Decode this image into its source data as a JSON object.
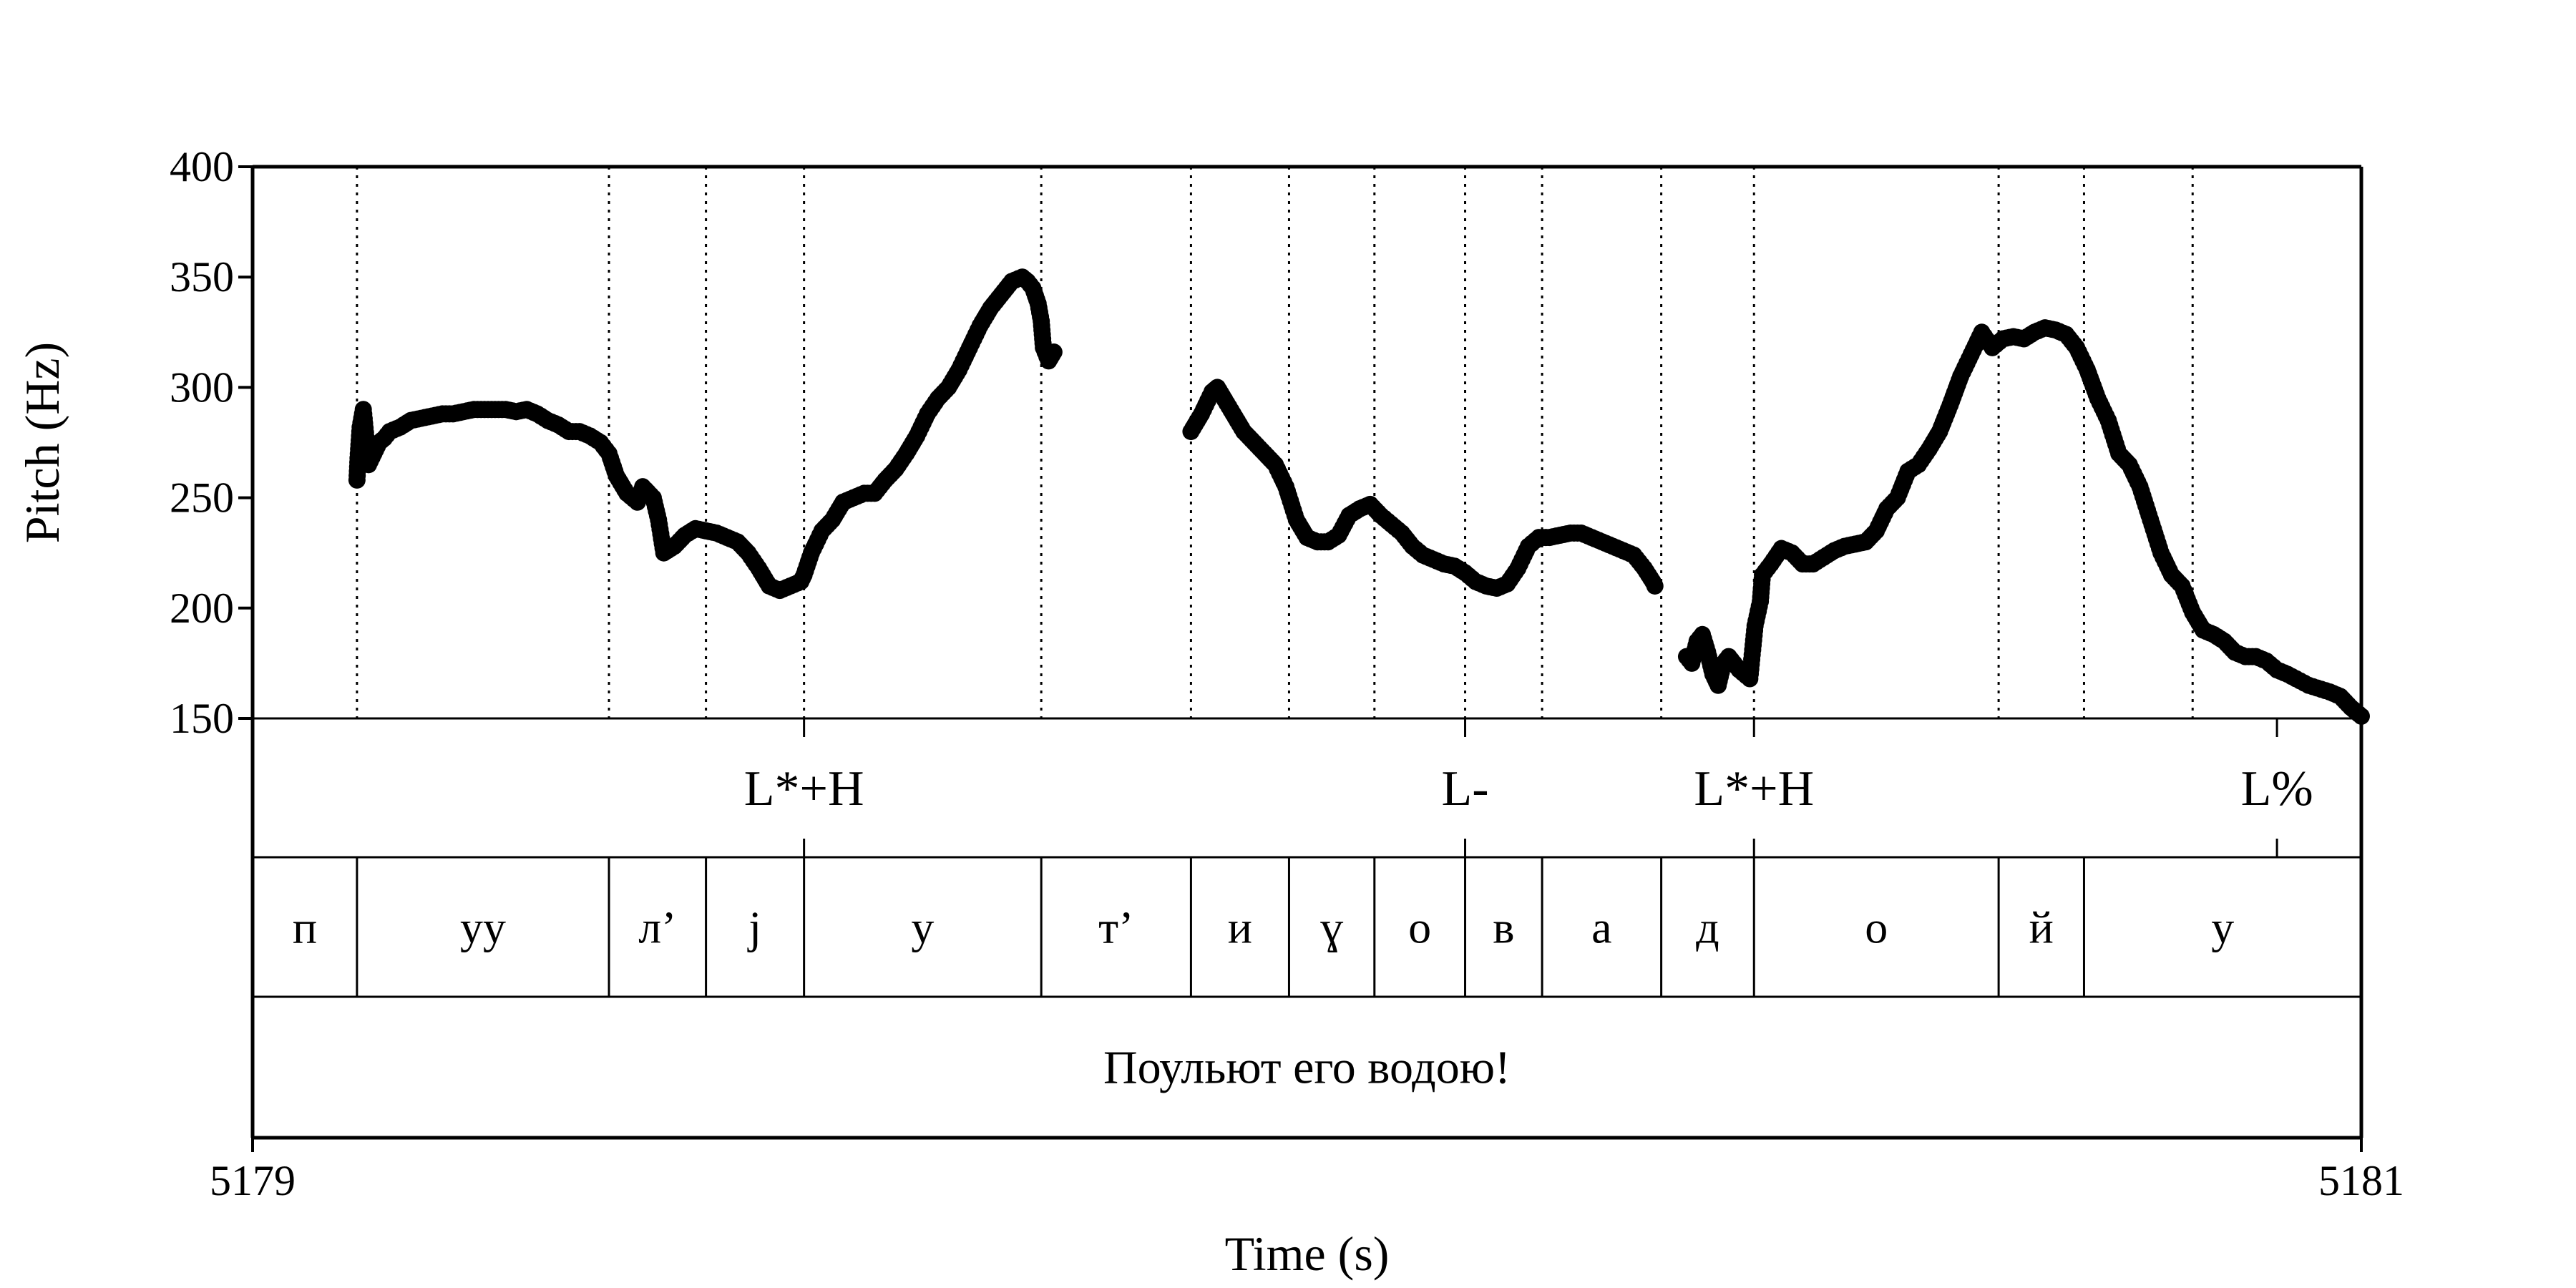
{
  "chart_data": {
    "type": "scatter",
    "xlabel": "Time (s)",
    "ylabel": "Pitch (Hz)",
    "xlim": [
      5179,
      5181
    ],
    "ylim": [
      150,
      400
    ],
    "xticks": [
      "5179",
      "5181"
    ],
    "yticks": [
      "150",
      "200",
      "250",
      "300",
      "350",
      "400"
    ],
    "boundaries": [
      5179.099,
      5179.338,
      5179.43,
      5179.523,
      5179.748,
      5179.89,
      5179.983,
      5180.064,
      5180.15,
      5180.223,
      5180.336,
      5180.424,
      5180.656,
      5180.737,
      5180.84,
      5181.0
    ],
    "tones": [
      {
        "label": "L*+H",
        "t": 5179.523
      },
      {
        "label": "L-",
        "t": 5180.15
      },
      {
        "label": "L*+H",
        "t": 5180.424
      },
      {
        "label": "L%",
        "t": 5180.92
      }
    ],
    "segments": [
      {
        "label": "п",
        "start": 5179.0,
        "end": 5179.099
      },
      {
        "label": "уу",
        "start": 5179.099,
        "end": 5179.338
      },
      {
        "label": "л’",
        "start": 5179.338,
        "end": 5179.43
      },
      {
        "label": "j",
        "start": 5179.43,
        "end": 5179.523
      },
      {
        "label": "у",
        "start": 5179.523,
        "end": 5179.748
      },
      {
        "label": "т’",
        "start": 5179.748,
        "end": 5179.89
      },
      {
        "label": "и",
        "start": 5179.89,
        "end": 5179.983
      },
      {
        "label": "ɣ",
        "start": 5179.983,
        "end": 5180.064
      },
      {
        "label": "о",
        "start": 5180.064,
        "end": 5180.15
      },
      {
        "label": "в",
        "start": 5180.15,
        "end": 5180.223
      },
      {
        "label": "а",
        "start": 5180.223,
        "end": 5180.336
      },
      {
        "label": "д",
        "start": 5180.336,
        "end": 5180.424
      },
      {
        "label": "о",
        "start": 5180.424,
        "end": 5180.656
      },
      {
        "label": "й",
        "start": 5180.656,
        "end": 5180.737
      },
      {
        "label": "у",
        "start": 5180.737,
        "end": 5181.0
      }
    ],
    "utterance": "Поульют его водою!",
    "pitch_segments": [
      [
        [
          5179.099,
          258
        ],
        [
          5179.1,
          268
        ],
        [
          5179.102,
          282
        ],
        [
          5179.105,
          290
        ],
        [
          5179.11,
          265
        ],
        [
          5179.115,
          270
        ],
        [
          5179.12,
          275
        ],
        [
          5179.125,
          277
        ],
        [
          5179.13,
          280
        ],
        [
          5179.14,
          282
        ],
        [
          5179.15,
          285
        ],
        [
          5179.16,
          286
        ],
        [
          5179.17,
          287
        ],
        [
          5179.18,
          288
        ],
        [
          5179.19,
          288
        ],
        [
          5179.2,
          289
        ],
        [
          5179.21,
          290
        ],
        [
          5179.22,
          290
        ],
        [
          5179.23,
          290
        ],
        [
          5179.24,
          290
        ],
        [
          5179.25,
          289
        ],
        [
          5179.26,
          290
        ],
        [
          5179.27,
          288
        ],
        [
          5179.28,
          285
        ],
        [
          5179.29,
          283
        ],
        [
          5179.3,
          280
        ],
        [
          5179.31,
          280
        ],
        [
          5179.32,
          278
        ],
        [
          5179.33,
          275
        ],
        [
          5179.338,
          270
        ],
        [
          5179.345,
          260
        ],
        [
          5179.355,
          252
        ],
        [
          5179.365,
          248
        ],
        [
          5179.37,
          255
        ],
        [
          5179.38,
          250
        ],
        [
          5179.385,
          240
        ],
        [
          5179.39,
          225
        ],
        [
          5179.4,
          228
        ],
        [
          5179.41,
          233
        ],
        [
          5179.42,
          236
        ],
        [
          5179.43,
          235
        ],
        [
          5179.44,
          234
        ],
        [
          5179.45,
          232
        ],
        [
          5179.46,
          230
        ],
        [
          5179.47,
          225
        ],
        [
          5179.48,
          218
        ],
        [
          5179.49,
          210
        ],
        [
          5179.5,
          208
        ],
        [
          5179.51,
          210
        ],
        [
          5179.52,
          212
        ],
        [
          5179.523,
          215
        ],
        [
          5179.53,
          225
        ],
        [
          5179.54,
          235
        ],
        [
          5179.55,
          240
        ],
        [
          5179.56,
          248
        ],
        [
          5179.57,
          250
        ],
        [
          5179.58,
          252
        ],
        [
          5179.59,
          252
        ],
        [
          5179.6,
          258
        ],
        [
          5179.61,
          263
        ],
        [
          5179.62,
          270
        ],
        [
          5179.63,
          278
        ],
        [
          5179.64,
          288
        ],
        [
          5179.65,
          295
        ],
        [
          5179.66,
          300
        ],
        [
          5179.67,
          308
        ],
        [
          5179.68,
          318
        ],
        [
          5179.69,
          328
        ],
        [
          5179.7,
          336
        ],
        [
          5179.71,
          342
        ],
        [
          5179.72,
          348
        ],
        [
          5179.73,
          350
        ],
        [
          5179.735,
          348
        ],
        [
          5179.74,
          345
        ],
        [
          5179.745,
          338
        ],
        [
          5179.748,
          330
        ],
        [
          5179.75,
          318
        ],
        [
          5179.755,
          312
        ],
        [
          5179.76,
          316
        ]
      ],
      [
        [
          5179.89,
          280
        ],
        [
          5179.9,
          288
        ],
        [
          5179.91,
          298
        ],
        [
          5179.915,
          300
        ],
        [
          5179.92,
          296
        ],
        [
          5179.93,
          288
        ],
        [
          5179.94,
          280
        ],
        [
          5179.95,
          275
        ],
        [
          5179.96,
          270
        ],
        [
          5179.97,
          265
        ],
        [
          5179.98,
          255
        ],
        [
          5179.99,
          240
        ],
        [
          5180.0,
          232
        ],
        [
          5180.01,
          230
        ],
        [
          5180.02,
          230
        ],
        [
          5180.03,
          233
        ],
        [
          5180.04,
          242
        ],
        [
          5180.05,
          245
        ],
        [
          5180.06,
          247
        ],
        [
          5180.07,
          242
        ],
        [
          5180.08,
          238
        ],
        [
          5180.09,
          234
        ],
        [
          5180.1,
          228
        ],
        [
          5180.11,
          224
        ],
        [
          5180.12,
          222
        ],
        [
          5180.13,
          220
        ],
        [
          5180.14,
          219
        ],
        [
          5180.15,
          216
        ],
        [
          5180.16,
          212
        ],
        [
          5180.17,
          210
        ],
        [
          5180.18,
          209
        ],
        [
          5180.19,
          211
        ],
        [
          5180.2,
          218
        ],
        [
          5180.21,
          228
        ],
        [
          5180.22,
          232
        ],
        [
          5180.23,
          232
        ],
        [
          5180.24,
          233
        ],
        [
          5180.25,
          234
        ],
        [
          5180.26,
          234
        ],
        [
          5180.27,
          232
        ],
        [
          5180.28,
          230
        ],
        [
          5180.29,
          228
        ],
        [
          5180.3,
          226
        ],
        [
          5180.31,
          224
        ],
        [
          5180.32,
          218
        ],
        [
          5180.328,
          212
        ],
        [
          5180.33,
          210
        ]
      ],
      [
        [
          5180.36,
          178
        ],
        [
          5180.365,
          175
        ],
        [
          5180.37,
          185
        ],
        [
          5180.375,
          188
        ],
        [
          5180.38,
          180
        ],
        [
          5180.385,
          170
        ],
        [
          5180.39,
          165
        ],
        [
          5180.395,
          175
        ],
        [
          5180.4,
          178
        ],
        [
          5180.41,
          172
        ],
        [
          5180.42,
          168
        ],
        [
          5180.425,
          192
        ],
        [
          5180.43,
          203
        ],
        [
          5180.432,
          215
        ],
        [
          5180.44,
          220
        ],
        [
          5180.45,
          227
        ],
        [
          5180.46,
          225
        ],
        [
          5180.47,
          220
        ],
        [
          5180.48,
          220
        ],
        [
          5180.49,
          223
        ],
        [
          5180.5,
          226
        ],
        [
          5180.51,
          228
        ],
        [
          5180.52,
          229
        ],
        [
          5180.53,
          230
        ],
        [
          5180.54,
          235
        ],
        [
          5180.55,
          245
        ],
        [
          5180.56,
          250
        ],
        [
          5180.57,
          262
        ],
        [
          5180.58,
          265
        ],
        [
          5180.59,
          272
        ],
        [
          5180.6,
          280
        ],
        [
          5180.61,
          292
        ],
        [
          5180.62,
          305
        ],
        [
          5180.63,
          315
        ],
        [
          5180.64,
          325
        ],
        [
          5180.65,
          318
        ],
        [
          5180.66,
          322
        ],
        [
          5180.67,
          323
        ],
        [
          5180.68,
          322
        ],
        [
          5180.69,
          325
        ],
        [
          5180.7,
          327
        ],
        [
          5180.71,
          326
        ],
        [
          5180.72,
          324
        ],
        [
          5180.73,
          318
        ],
        [
          5180.74,
          308
        ],
        [
          5180.75,
          295
        ],
        [
          5180.76,
          285
        ],
        [
          5180.77,
          270
        ],
        [
          5180.78,
          265
        ],
        [
          5180.79,
          255
        ],
        [
          5180.8,
          240
        ],
        [
          5180.81,
          225
        ],
        [
          5180.82,
          215
        ],
        [
          5180.83,
          210
        ],
        [
          5180.84,
          198
        ],
        [
          5180.85,
          190
        ],
        [
          5180.86,
          188
        ],
        [
          5180.87,
          185
        ],
        [
          5180.88,
          180
        ],
        [
          5180.89,
          178
        ],
        [
          5180.9,
          178
        ],
        [
          5180.91,
          176
        ],
        [
          5180.92,
          172
        ],
        [
          5180.93,
          170
        ],
        [
          5180.95,
          165
        ],
        [
          5180.97,
          162
        ],
        [
          5180.98,
          160
        ],
        [
          5180.99,
          155
        ],
        [
          5180.995,
          153
        ],
        [
          5181.0,
          151
        ]
      ]
    ]
  }
}
